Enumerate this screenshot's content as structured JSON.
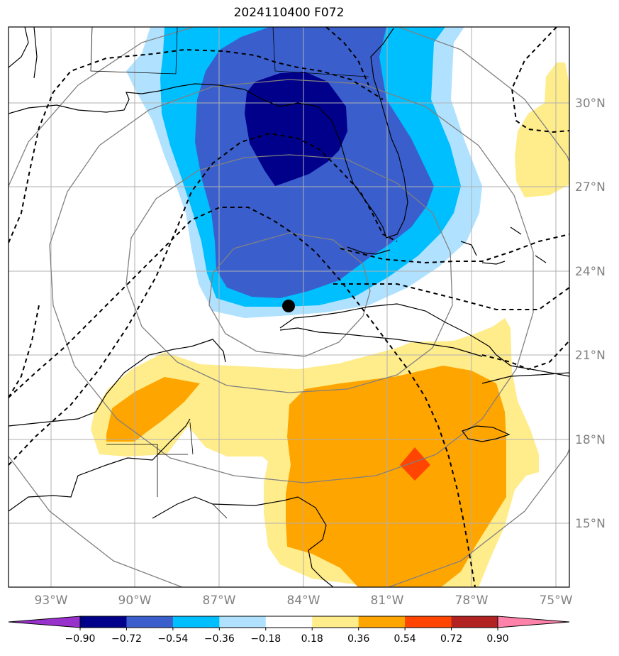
{
  "title": "2024110400 F072",
  "colors": {
    "deep_blue": "#00008b",
    "royal_blue": "#3a5fcd",
    "sky_blue": "#00bfff",
    "light_blue": "#b0e2ff",
    "light_yellow": "#ffec8b",
    "orange": "#ffa500",
    "red_orange": "#ff4500",
    "purple": "#9932cc",
    "dark_red": "#b22222",
    "pink": "#ff82ab"
  },
  "map": {
    "lat_labels": [
      "30°N",
      "27°N",
      "24°N",
      "21°N",
      "18°N",
      "15°N"
    ],
    "lon_labels": [
      "93°W",
      "90°W",
      "87°W",
      "84°W",
      "81°W",
      "78°W",
      "75°W"
    ],
    "center_marker": "storm-center"
  },
  "colorbar": {
    "ticks": [
      "−0.90",
      "−0.72",
      "−0.54",
      "−0.36",
      "−0.18",
      "0.18",
      "0.36",
      "0.54",
      "0.72",
      "0.90"
    ],
    "segment_colors": [
      "#00008b",
      "#3a5fcd",
      "#00bfff",
      "#b0e2ff",
      "#ffffff",
      "#ffec8b",
      "#ffa500",
      "#ff4500",
      "#b22222"
    ],
    "under_color": "#9932cc",
    "over_color": "#ff82ab"
  }
}
